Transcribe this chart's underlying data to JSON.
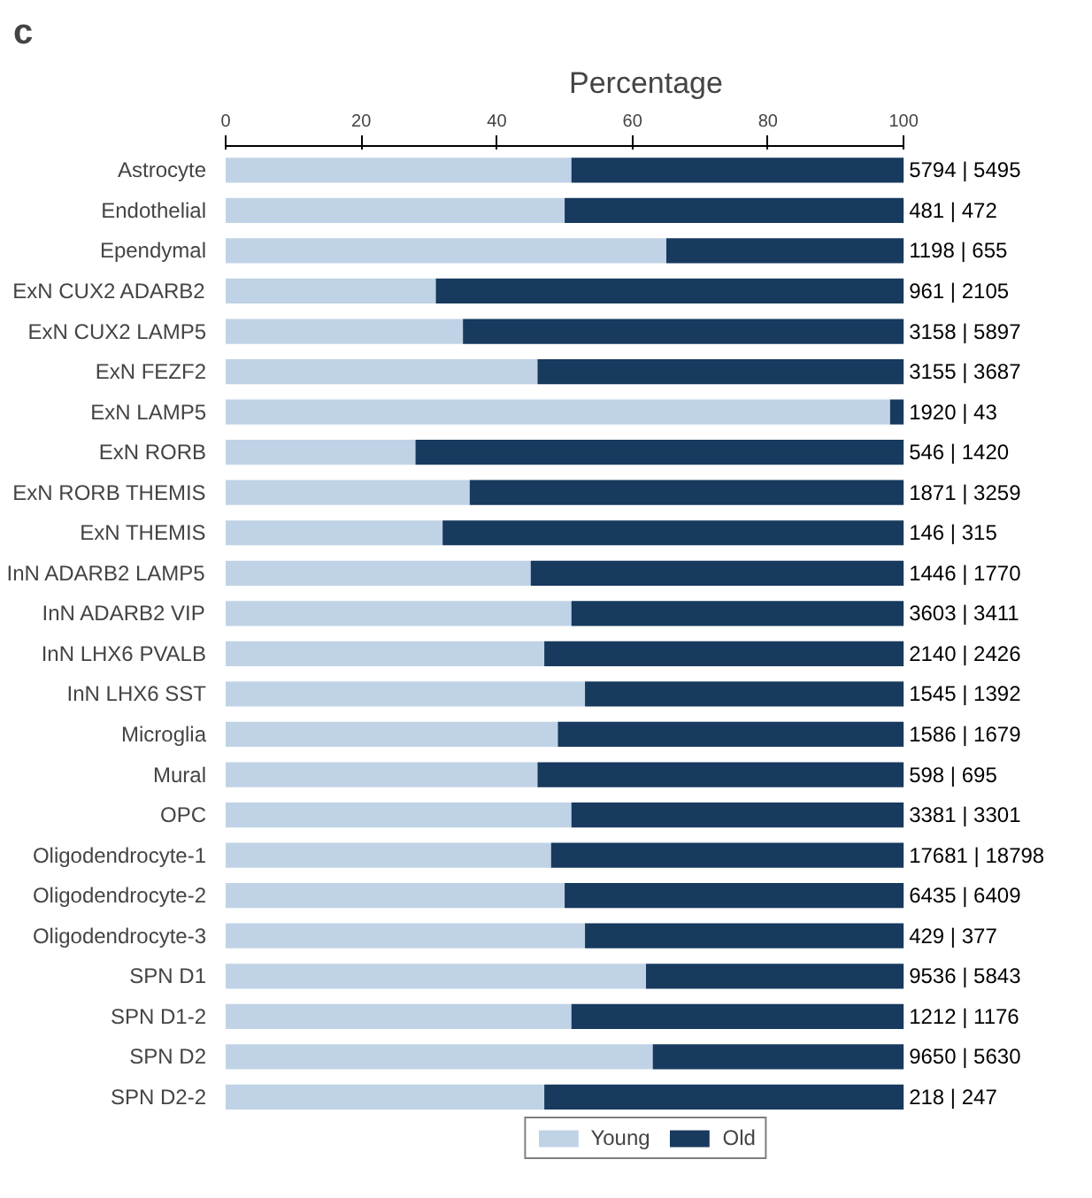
{
  "chart_data": {
    "type": "bar",
    "orientation": "horizontal",
    "stacked": true,
    "xlabel": "Percentage",
    "annotations": [
      "c"
    ],
    "categories": [
      "Astrocyte",
      "Endothelial",
      "Ependymal",
      "ExN CUX2 ADARB2",
      "ExN CUX2 LAMP5",
      "ExN FEZF2",
      "ExN LAMP5",
      "ExN RORB",
      "ExN RORB THEMIS",
      "ExN THEMIS",
      "InN ADARB2 LAMP5",
      "InN ADARB2 VIP",
      "InN LHX6 PVALB",
      "InN LHX6 SST",
      "Microglia",
      "Mural",
      "OPC",
      "Oligodendrocyte-1",
      "Oligodendrocyte-2",
      "Oligodendrocyte-3",
      "SPN D1",
      "SPN D1-2",
      "SPN D2",
      "SPN D2-2"
    ],
    "series": [
      {
        "name": "Young",
        "color": "#c0d3e6",
        "values": [
          51,
          50,
          65,
          31,
          35,
          46,
          98,
          28,
          36,
          32,
          45,
          51,
          47,
          53,
          49,
          46,
          51,
          48,
          50,
          53,
          62,
          51,
          63,
          47
        ]
      },
      {
        "name": "Old",
        "color": "#173a5e",
        "values": [
          49,
          50,
          35,
          69,
          65,
          54,
          2,
          72,
          64,
          68,
          55,
          49,
          53,
          47,
          51,
          54,
          49,
          52,
          50,
          47,
          38,
          49,
          37,
          53
        ]
      }
    ],
    "totals": [
      "5794 | 5495",
      "481 | 472",
      "1198 | 655",
      "961 | 2105",
      "3158 | 5897",
      "3155 | 3687",
      "1920 | 43",
      "546 | 1420",
      "1871 | 3259",
      "146 | 315",
      "1446 | 1770",
      "3603 | 3411",
      "2140 | 2426",
      "1545 | 1392",
      "1586 | 1679",
      "598 | 695",
      "3381 | 3301",
      "17681 | 18798",
      "6435 | 6409",
      "429 | 377",
      "9536 | 5843",
      "1212 | 1176",
      "9650 | 5630",
      "218 | 247"
    ],
    "xlim": [
      0,
      100
    ],
    "xticks": [
      0,
      20,
      40,
      60,
      80,
      100
    ],
    "grid": false,
    "legend": "bottom"
  }
}
